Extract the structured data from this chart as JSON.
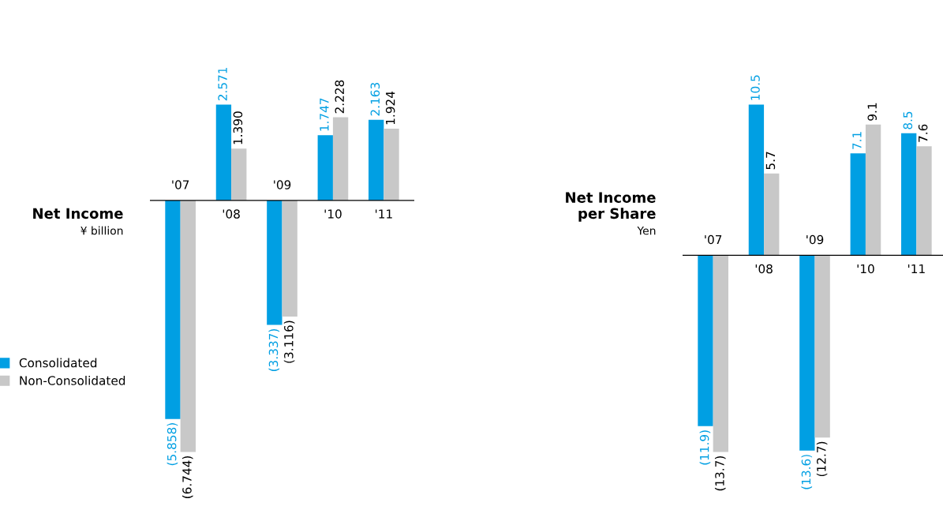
{
  "chart_data": [
    {
      "type": "bar",
      "title": "Net Income",
      "subtitle": "¥ billion",
      "categories": [
        "'07",
        "'08",
        "'09",
        "'10",
        "'11"
      ],
      "legend": "left",
      "data_labels": true,
      "series": [
        {
          "name": "Consolidated",
          "color": "#009fe3",
          "values": [
            -5.858,
            2.571,
            -3.337,
            1.747,
            2.163
          ],
          "value_labels": [
            "(5.858)",
            "2.571",
            "(3.337)",
            "1.747",
            "2.163"
          ]
        },
        {
          "name": "Non-Consolidated",
          "color": "#c8c8c8",
          "values": [
            -6.744,
            1.39,
            -3.116,
            2.228,
            1.924
          ],
          "value_labels": [
            "(6.744)",
            "1.390",
            "(3.116)",
            "2.228",
            "1.924"
          ]
        }
      ]
    },
    {
      "type": "bar",
      "title": "Net Income\nper Share",
      "subtitle": "Yen",
      "categories": [
        "'07",
        "'08",
        "'09",
        "'10",
        "'11"
      ],
      "data_labels": true,
      "series": [
        {
          "color": "#009fe3",
          "values": [
            -11.9,
            10.5,
            -13.6,
            7.1,
            8.5
          ],
          "value_labels": [
            "(11.9)",
            "10.5",
            "(13.6)",
            "7.1",
            "8.5"
          ]
        },
        {
          "color": "#c8c8c8",
          "values": [
            -13.7,
            5.7,
            -12.7,
            9.1,
            7.6
          ],
          "value_labels": [
            "(13.7)",
            "5.7",
            "(12.7)",
            "9.1",
            "7.6"
          ]
        }
      ]
    }
  ]
}
